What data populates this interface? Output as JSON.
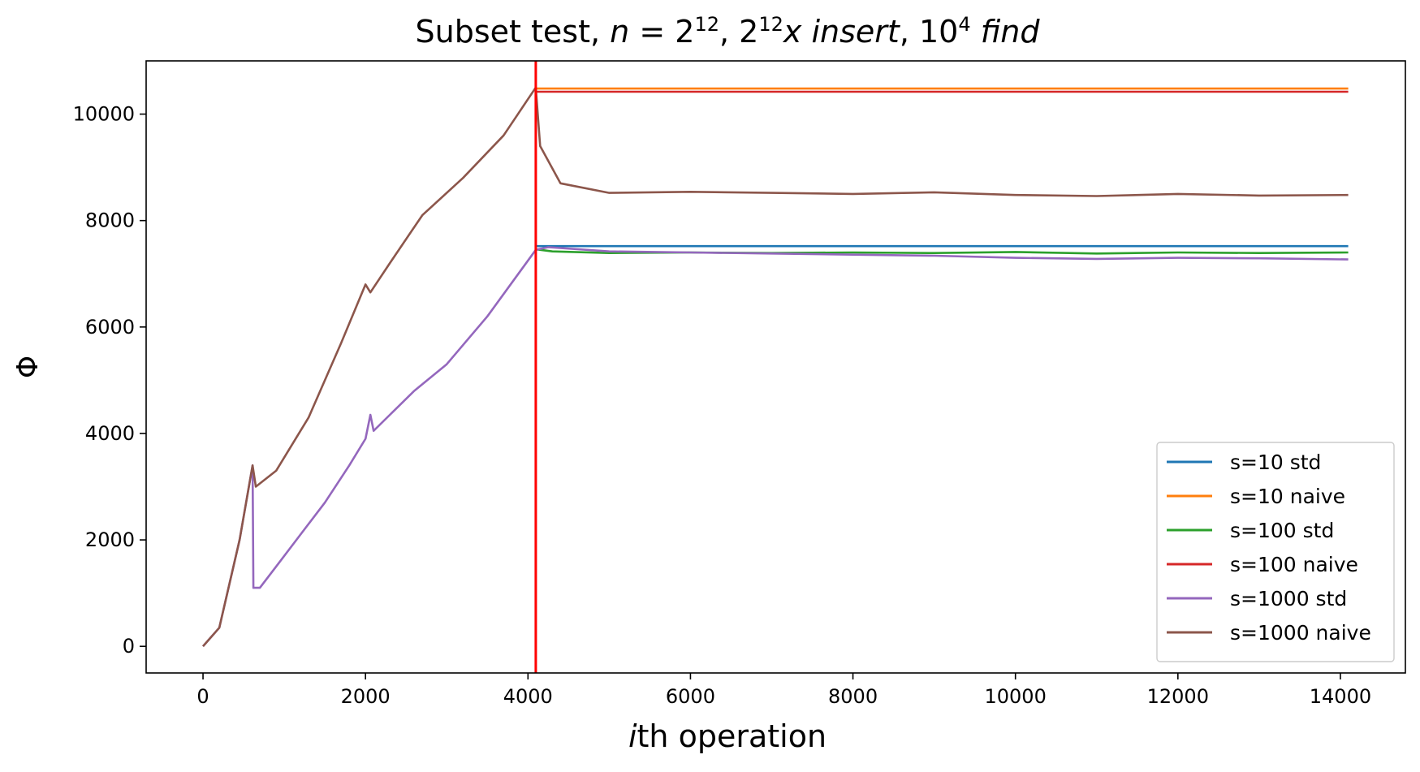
{
  "chart_data": {
    "type": "line",
    "title_parts": {
      "prefix": "Subset test, ",
      "n": "n",
      "eq": " = 2",
      "exp1": "12",
      "sep": ", 2",
      "exp2": "12",
      "x": "x",
      "insert": " insert",
      "sep2": ", 10",
      "exp3": "4",
      "find": " find"
    },
    "xlabel": {
      "italic": "i",
      "rest": "th operation"
    },
    "ylabel": "Φ",
    "xlim": [
      -700,
      14800
    ],
    "ylim": [
      -500,
      11000
    ],
    "xticks": [
      0,
      2000,
      4000,
      6000,
      8000,
      10000,
      12000,
      14000
    ],
    "yticks": [
      0,
      2000,
      4000,
      6000,
      8000,
      10000
    ],
    "vline": {
      "x": 4096,
      "color": "#ff0000"
    },
    "legend_position": "lower-right",
    "series": [
      {
        "name": "s=10 std",
        "color": "#1f77b4",
        "x": [
          4096,
          14096
        ],
        "y": [
          7520,
          7520
        ]
      },
      {
        "name": "s=10 naive",
        "color": "#ff7f0e",
        "x": [
          4096,
          14096
        ],
        "y": [
          10480,
          10480
        ]
      },
      {
        "name": "s=100 std",
        "color": "#2ca02c",
        "x": [
          4096,
          4300,
          5000,
          6000,
          7000,
          8000,
          9000,
          10000,
          11000,
          12000,
          13000,
          14096
        ],
        "y": [
          7460,
          7420,
          7390,
          7400,
          7390,
          7400,
          7390,
          7410,
          7380,
          7400,
          7390,
          7400
        ]
      },
      {
        "name": "s=100 naive",
        "color": "#d62728",
        "x": [
          4096,
          14096
        ],
        "y": [
          10420,
          10420
        ]
      },
      {
        "name": "s=1000 std",
        "color": "#9467bd",
        "x": [
          0,
          200,
          450,
          610,
          620,
          700,
          900,
          1200,
          1500,
          1800,
          2000,
          2060,
          2100,
          2300,
          2600,
          3000,
          3500,
          4096,
          4250,
          5000,
          6000,
          7000,
          8000,
          9000,
          10000,
          11000,
          12000,
          13000,
          14096
        ],
        "y": [
          0,
          350,
          2000,
          3400,
          1100,
          1100,
          1500,
          2100,
          2700,
          3400,
          3900,
          4350,
          4050,
          4350,
          4800,
          5300,
          6200,
          7450,
          7500,
          7420,
          7400,
          7380,
          7360,
          7340,
          7300,
          7280,
          7300,
          7290,
          7270
        ]
      },
      {
        "name": "s=1000 naive",
        "color": "#8c564b",
        "x": [
          0,
          200,
          450,
          610,
          650,
          900,
          1300,
          1700,
          2000,
          2060,
          2300,
          2700,
          3200,
          3700,
          4096,
          4150,
          4400,
          5000,
          6000,
          7000,
          8000,
          9000,
          10000,
          11000,
          12000,
          13000,
          14096
        ],
        "y": [
          0,
          350,
          2000,
          3400,
          3000,
          3300,
          4300,
          5700,
          6800,
          6650,
          7200,
          8100,
          8800,
          9600,
          10500,
          9400,
          8700,
          8520,
          8540,
          8520,
          8500,
          8530,
          8480,
          8460,
          8500,
          8470,
          8480
        ]
      }
    ]
  }
}
